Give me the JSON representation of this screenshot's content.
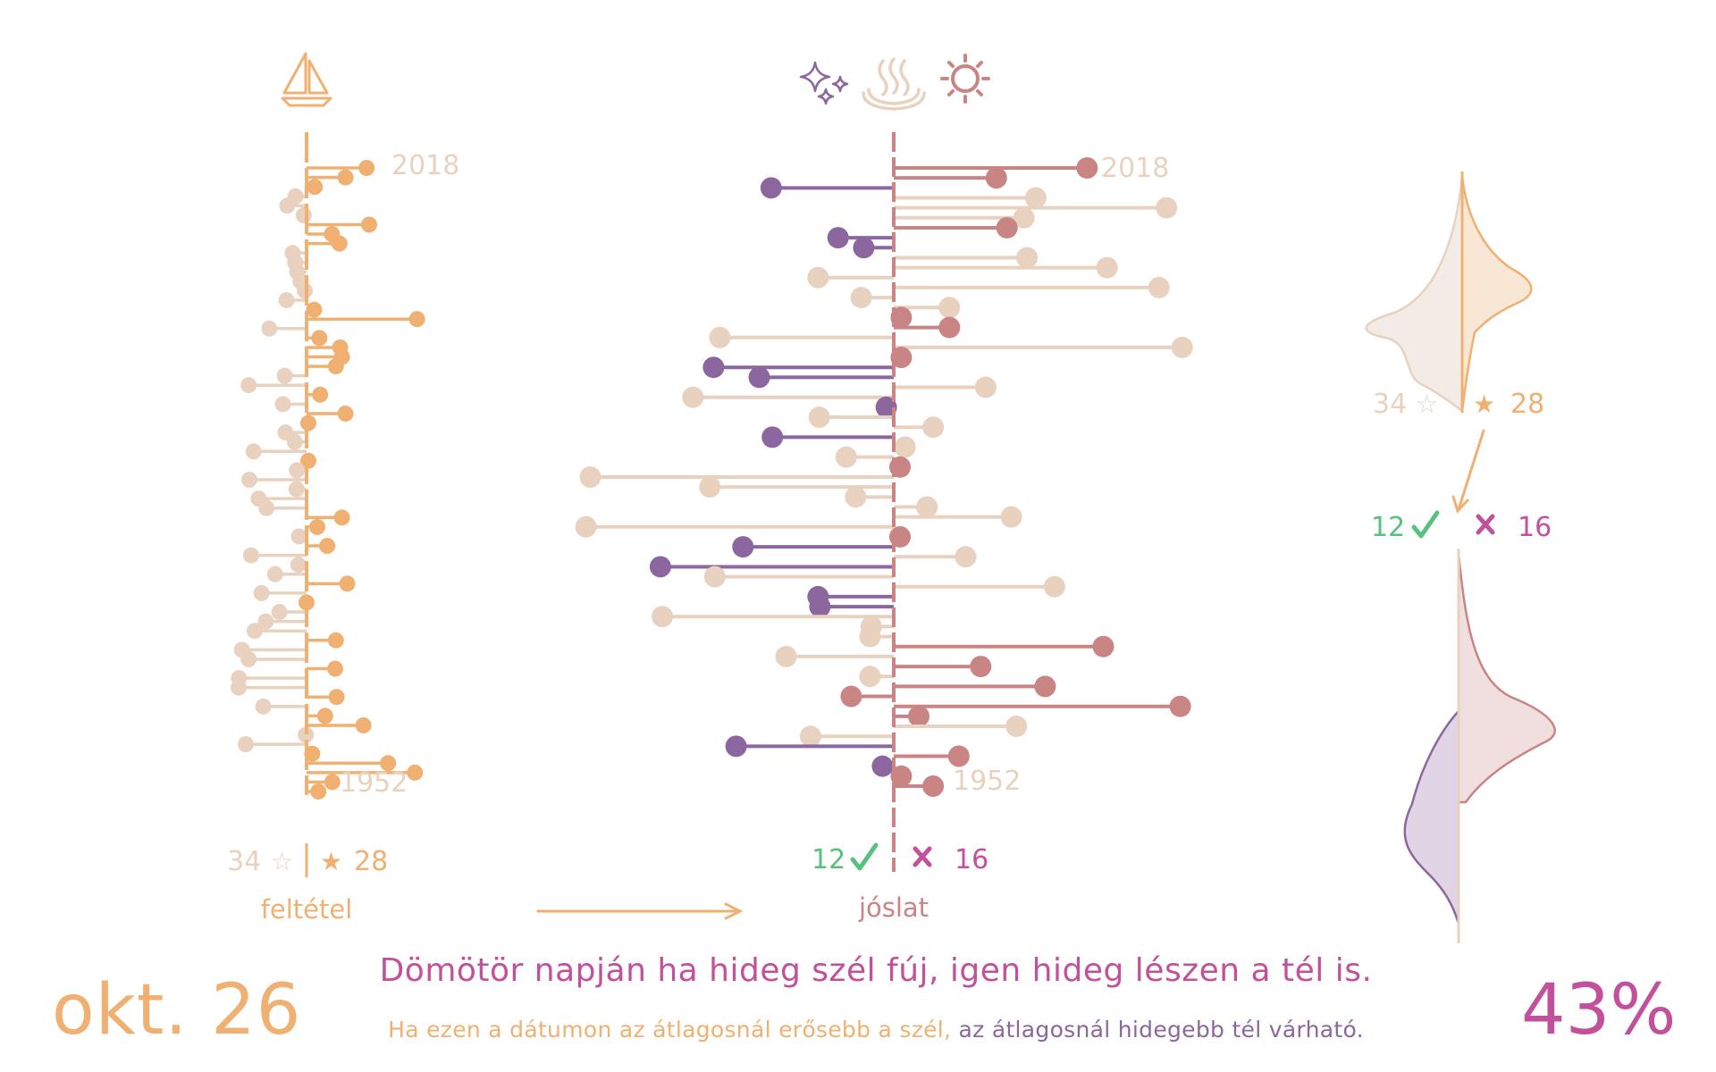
{
  "colors": {
    "orange": "#f0b072",
    "beige": "#e8d2bf",
    "rose": "#c98484",
    "purple": "#8c679f",
    "green": "#56c27e",
    "magenta": "#c2509a",
    "leftbg_kde": "#f3ece6",
    "orange_kde": "#f9e7d5",
    "rose_kde": "#f1dfe0",
    "purple_kde": "#e1d4e5"
  },
  "icons": {
    "left": "sailboat-icon",
    "middle": [
      "sparkles-icon",
      "steam-icon",
      "sun-icon"
    ]
  },
  "chart_data": [
    {
      "type": "lollipop",
      "name": "feltétel",
      "years": {
        "top": "2018",
        "bottom": "1952"
      },
      "counts": {
        "below": "34",
        "above": "28"
      },
      "symbols": {
        "below": "☆",
        "above": "★"
      },
      "label": "feltétel",
      "values": [
        1.68,
        1.09,
        0.23,
        -0.31,
        -0.54,
        -0.08,
        1.75,
        0.71,
        0.92,
        -0.39,
        -0.32,
        -0.26,
        -0.17,
        -0.05,
        -0.56,
        0.21,
        3.09,
        -1.04,
        0.36,
        0.94,
        0.99,
        0.82,
        -0.61,
        -1.62,
        0.38,
        -0.66,
        1.09,
        0.05,
        -0.59,
        -0.33,
        -1.48,
        0.05,
        -0.27,
        -1.6,
        -0.28,
        -1.34,
        -1.12,
        0.99,
        0.3,
        -0.21,
        0.58,
        -1.55,
        -0.23,
        -0.88,
        1.14,
        -1.26,
        0.0,
        -0.76,
        -1.14,
        -1.45,
        0.82,
        -1.81,
        -1.62,
        0.8,
        -1.89,
        -1.9,
        0.84,
        -1.21,
        0.52,
        1.59,
        -0.02,
        -1.7,
        0.16,
        2.28,
        3.03,
        0.72,
        0.33
      ]
    },
    {
      "type": "lollipop",
      "name": "jóslat",
      "years": {
        "top": "2018",
        "bottom": "1952"
      },
      "counts": {
        "correct": "12",
        "wrong": "16"
      },
      "label": "jóslat",
      "values": [
        3.09,
        1.64,
        -1.96,
        2.27,
        4.36,
        2.08,
        1.81,
        -0.89,
        -0.48,
        2.13,
        3.41,
        -1.21,
        4.24,
        -0.52,
        0.89,
        0.12,
        0.89,
        -2.78,
        4.61,
        0.12,
        -2.88,
        -2.15,
        1.47,
        -3.21,
        -0.12,
        -1.19,
        0.63,
        -1.94,
        0.18,
        -0.76,
        0.1,
        -4.85,
        -2.94,
        -0.61,
        0.53,
        1.88,
        -4.92,
        0.1,
        -2.41,
        1.15,
        -3.73,
        -2.86,
        2.57,
        -1.21,
        -1.18,
        -3.7,
        -0.36,
        -0.38,
        3.35,
        -1.72,
        1.39,
        -0.38,
        2.42,
        -0.68,
        4.58,
        0.4,
        1.96,
        -1.33,
        -2.52,
        1.04,
        -0.18,
        0.12,
        0.63
      ],
      "groups": [
        "rose",
        "rose",
        "purple",
        "beige",
        "beige",
        "beige",
        "rose",
        "purple",
        "purple",
        "beige",
        "beige",
        "beige",
        "beige",
        "beige",
        "beige",
        "rose",
        "rose",
        "beige",
        "beige",
        "rose",
        "purple",
        "purple",
        "beige",
        "beige",
        "purple",
        "beige",
        "beige",
        "purple",
        "beige",
        "beige",
        "rose",
        "beige",
        "beige",
        "beige",
        "beige",
        "beige",
        "beige",
        "rose",
        "purple",
        "beige",
        "purple",
        "beige",
        "beige",
        "purple",
        "purple",
        "beige",
        "beige",
        "beige",
        "rose",
        "beige",
        "rose",
        "beige",
        "rose",
        "rose",
        "rose",
        "rose",
        "beige",
        "beige",
        "purple",
        "rose",
        "purple",
        "rose",
        "rose"
      ]
    }
  ],
  "right_panel": {
    "top": {
      "below": "34",
      "above": "28",
      "below_symbol": "☆",
      "above_symbol": "★"
    },
    "bottom": {
      "correct": "12",
      "wrong": "16"
    }
  },
  "bottom": {
    "date": "okt. 26",
    "percent": "43%",
    "proverb": "Dömötör napján ha hideg szél fúj, igen hideg lészen a tél is.",
    "explanation_condition": "Ha ezen a dátumon az átlagosnál erősebb a szél,",
    "explanation_result": " az átlagosnál hidegebb tél várható."
  }
}
